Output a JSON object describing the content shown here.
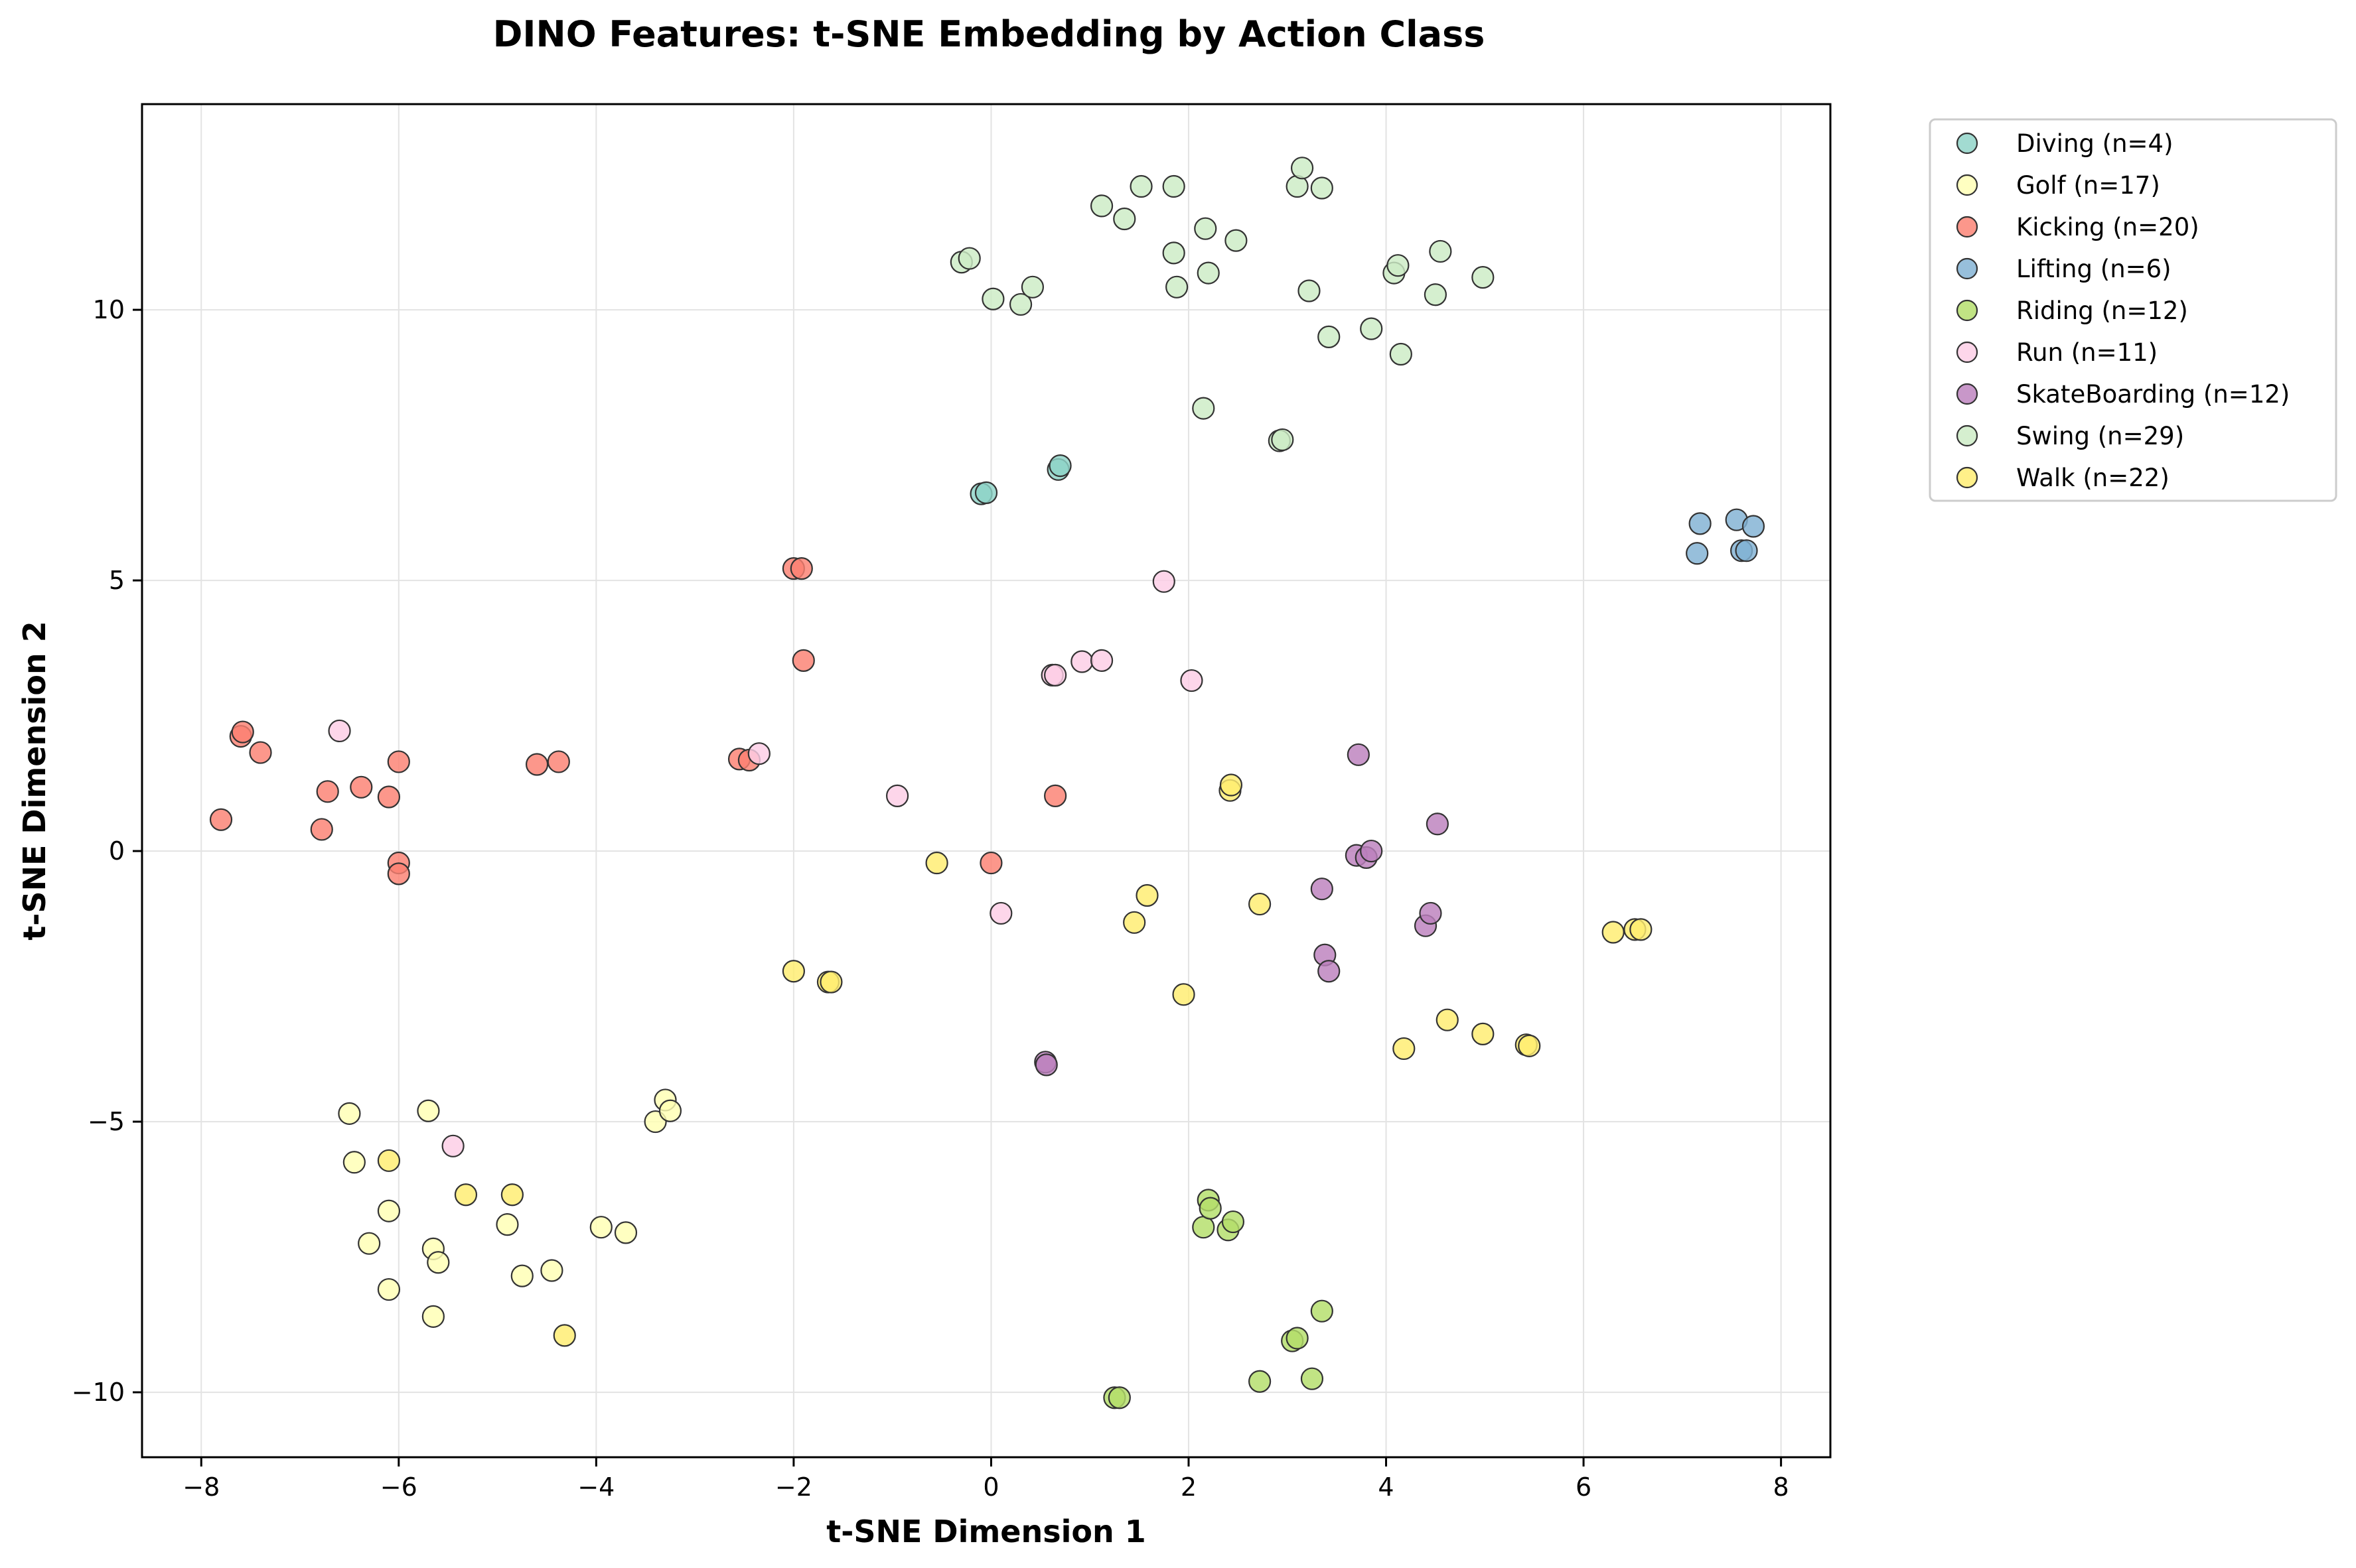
{
  "chart_data": {
    "type": "scatter",
    "title": "DINO Features: t-SNE Embedding by Action Class",
    "xlabel": "t-SNE Dimension 1",
    "ylabel": "t-SNE Dimension 2",
    "xlim": [
      -8.6,
      8.5
    ],
    "ylim": [
      -11.2,
      13.8
    ],
    "xticks": [
      -8,
      -6,
      -4,
      -2,
      0,
      2,
      4,
      6,
      8
    ],
    "yticks": [
      -10,
      -5,
      0,
      5,
      10
    ],
    "grid": true,
    "legend_position": "outside-right-top",
    "series": [
      {
        "name": "Diving (n=4)",
        "color": "#8dd3c7",
        "points": [
          [
            -0.1,
            6.6
          ],
          [
            -0.05,
            6.62
          ],
          [
            0.68,
            7.05
          ],
          [
            0.7,
            7.12
          ]
        ]
      },
      {
        "name": "Golf (n=17)",
        "color": "#ffffb3",
        "points": [
          [
            -6.5,
            -4.85
          ],
          [
            -6.45,
            -5.75
          ],
          [
            -6.3,
            -7.25
          ],
          [
            -6.1,
            -6.65
          ],
          [
            -6.1,
            -8.1
          ],
          [
            -5.7,
            -4.8
          ],
          [
            -5.65,
            -7.35
          ],
          [
            -5.65,
            -8.6
          ],
          [
            -5.6,
            -7.6
          ],
          [
            -4.9,
            -6.9
          ],
          [
            -4.75,
            -7.85
          ],
          [
            -4.45,
            -7.75
          ],
          [
            -3.95,
            -6.95
          ],
          [
            -3.7,
            -7.05
          ],
          [
            -3.4,
            -5.0
          ],
          [
            -3.3,
            -4.6
          ],
          [
            -3.25,
            -4.8
          ]
        ]
      },
      {
        "name": "Kicking (n=20)",
        "color": "#fb8072",
        "points": [
          [
            -7.8,
            0.58
          ],
          [
            -7.6,
            2.12
          ],
          [
            -7.58,
            2.2
          ],
          [
            -7.4,
            1.82
          ],
          [
            -6.78,
            0.4
          ],
          [
            -6.72,
            1.1
          ],
          [
            -6.38,
            1.18
          ],
          [
            -6.1,
            1.0
          ],
          [
            -6.0,
            1.65
          ],
          [
            -6.0,
            -0.22
          ],
          [
            -6.0,
            -0.42
          ],
          [
            -4.6,
            1.6
          ],
          [
            -4.38,
            1.65
          ],
          [
            -2.55,
            1.7
          ],
          [
            -2.45,
            1.68
          ],
          [
            -2.0,
            5.22
          ],
          [
            -1.92,
            5.22
          ],
          [
            -1.9,
            3.52
          ],
          [
            0.0,
            -0.22
          ],
          [
            0.65,
            1.02
          ]
        ]
      },
      {
        "name": "Lifting (n=6)",
        "color": "#80b1d3",
        "points": [
          [
            7.15,
            5.5
          ],
          [
            7.18,
            6.05
          ],
          [
            7.55,
            6.12
          ],
          [
            7.6,
            5.55
          ],
          [
            7.65,
            5.55
          ],
          [
            7.72,
            6.0
          ]
        ]
      },
      {
        "name": "Riding (n=12)",
        "color": "#b3de69",
        "points": [
          [
            1.25,
            -10.1
          ],
          [
            1.3,
            -10.1
          ],
          [
            2.15,
            -6.95
          ],
          [
            2.2,
            -6.45
          ],
          [
            2.22,
            -6.6
          ],
          [
            2.4,
            -7.0
          ],
          [
            2.45,
            -6.85
          ],
          [
            2.72,
            -9.8
          ],
          [
            3.05,
            -9.05
          ],
          [
            3.1,
            -9.0
          ],
          [
            3.25,
            -9.75
          ],
          [
            3.35,
            -8.5
          ]
        ]
      },
      {
        "name": "Run (n=11)",
        "color": "#fccde5",
        "points": [
          [
            -6.6,
            2.22
          ],
          [
            -5.45,
            -5.45
          ],
          [
            -2.35,
            1.8
          ],
          [
            -0.95,
            1.02
          ],
          [
            0.1,
            -1.15
          ],
          [
            0.62,
            3.25
          ],
          [
            0.65,
            3.25
          ],
          [
            0.92,
            3.5
          ],
          [
            1.12,
            3.52
          ],
          [
            1.75,
            4.98
          ],
          [
            2.03,
            3.15
          ]
        ]
      },
      {
        "name": "SkateBoarding (n=12)",
        "color": "#bc80bd",
        "points": [
          [
            0.55,
            -3.9
          ],
          [
            0.56,
            -3.95
          ],
          [
            3.35,
            -0.7
          ],
          [
            3.38,
            -1.92
          ],
          [
            3.42,
            -2.22
          ],
          [
            3.7,
            -0.08
          ],
          [
            3.72,
            1.78
          ],
          [
            3.8,
            -0.12
          ],
          [
            3.85,
            0.0
          ],
          [
            4.4,
            -1.38
          ],
          [
            4.45,
            -1.15
          ],
          [
            4.52,
            0.5
          ]
        ]
      },
      {
        "name": "Swing (n=29)",
        "color": "#ccebc5",
        "points": [
          [
            -0.3,
            10.88
          ],
          [
            -0.22,
            10.95
          ],
          [
            0.02,
            10.2
          ],
          [
            0.3,
            10.1
          ],
          [
            0.42,
            10.42
          ],
          [
            1.12,
            11.92
          ],
          [
            1.35,
            11.68
          ],
          [
            1.52,
            12.28
          ],
          [
            1.85,
            12.28
          ],
          [
            1.85,
            11.05
          ],
          [
            1.88,
            10.42
          ],
          [
            2.15,
            8.18
          ],
          [
            2.17,
            11.5
          ],
          [
            2.2,
            10.68
          ],
          [
            2.48,
            11.28
          ],
          [
            2.92,
            7.58
          ],
          [
            2.95,
            7.6
          ],
          [
            3.1,
            12.28
          ],
          [
            3.15,
            12.62
          ],
          [
            3.22,
            10.35
          ],
          [
            3.35,
            12.25
          ],
          [
            3.42,
            9.5
          ],
          [
            3.85,
            9.65
          ],
          [
            4.08,
            10.68
          ],
          [
            4.12,
            10.82
          ],
          [
            4.15,
            9.18
          ],
          [
            4.5,
            10.28
          ],
          [
            4.55,
            11.08
          ],
          [
            4.98,
            10.6
          ]
        ]
      },
      {
        "name": "Walk (n=22)",
        "color": "#ffed6f",
        "points": [
          [
            -6.1,
            -5.72
          ],
          [
            -5.32,
            -6.35
          ],
          [
            -4.85,
            -6.35
          ],
          [
            -4.32,
            -8.95
          ],
          [
            -2.0,
            -2.22
          ],
          [
            -1.65,
            -2.42
          ],
          [
            -1.62,
            -2.42
          ],
          [
            -0.55,
            -0.22
          ],
          [
            1.45,
            -1.32
          ],
          [
            1.58,
            -0.82
          ],
          [
            1.95,
            -2.65
          ],
          [
            2.42,
            1.12
          ],
          [
            2.43,
            1.22
          ],
          [
            2.72,
            -0.98
          ],
          [
            4.18,
            -3.65
          ],
          [
            4.62,
            -3.12
          ],
          [
            4.98,
            -3.38
          ],
          [
            5.42,
            -3.58
          ],
          [
            5.45,
            -3.6
          ],
          [
            6.3,
            -1.5
          ],
          [
            6.52,
            -1.45
          ],
          [
            6.58,
            -1.45
          ]
        ]
      }
    ]
  }
}
